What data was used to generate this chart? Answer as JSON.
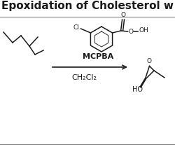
{
  "title": "Epoxidation of Cholesterol w",
  "title_fontsize": 11,
  "title_fontweight": "bold",
  "reagent_above": "MCPBA",
  "reagent_below": "CH₂Cl₂",
  "background_color": "#ffffff",
  "line_color": "#1a1a1a",
  "fig_width": 2.5,
  "fig_height": 2.16,
  "dpi": 100
}
